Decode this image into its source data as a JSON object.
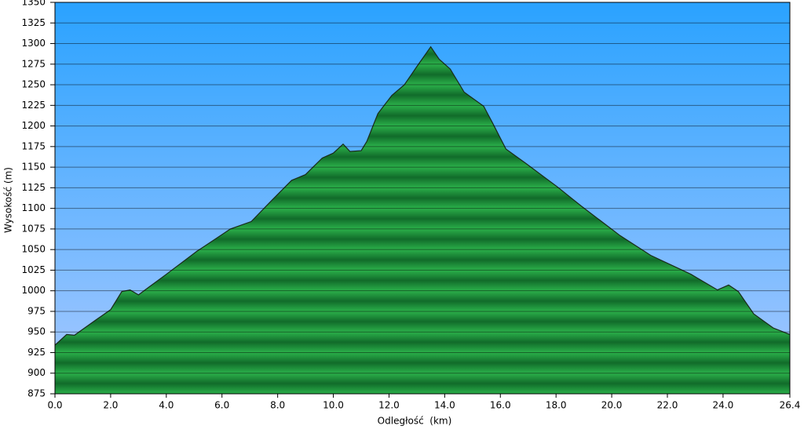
{
  "chart_data": {
    "type": "area",
    "x_label": "Odległość  (km)",
    "y_label": "Wysokość (m)",
    "x": [
      0,
      0.42,
      0.7,
      1.4,
      2.0,
      2.4,
      2.7,
      3.0,
      3.4,
      4.0,
      5.1,
      6.3,
      7.05,
      7.8,
      8.5,
      9.0,
      9.6,
      10.0,
      10.35,
      10.6,
      11.0,
      11.2,
      11.6,
      12.1,
      12.55,
      13.0,
      13.5,
      13.8,
      14.2,
      14.7,
      15.4,
      15.7,
      16.2,
      16.9,
      18.05,
      18.9,
      20.3,
      21.4,
      22.85,
      23.8,
      24.2,
      24.55,
      25.1,
      25.8,
      26.4
    ],
    "values": [
      934,
      947,
      946,
      963,
      977,
      999,
      1001,
      995,
      1005,
      1020,
      1048,
      1075,
      1084,
      1110,
      1134,
      1141,
      1161,
      1167,
      1178,
      1169,
      1170,
      1181,
      1215,
      1237,
      1250,
      1272,
      1296,
      1281,
      1269,
      1241,
      1224,
      1205,
      1172,
      1155,
      1126,
      1103,
      1067,
      1043,
      1020,
      1001,
      1007,
      999,
      972,
      955,
      947
    ],
    "color": "#1f9a3a",
    "xlim": [
      0,
      26.4
    ],
    "xticks": [
      {
        "value": 0,
        "label": "0.0"
      },
      {
        "value": 2,
        "label": "2.0"
      },
      {
        "value": 4,
        "label": "4.0"
      },
      {
        "value": 6,
        "label": "6.0"
      },
      {
        "value": 8,
        "label": "8.0"
      },
      {
        "value": 10,
        "label": "10.0"
      },
      {
        "value": 12,
        "label": "12.0"
      },
      {
        "value": 14,
        "label": "14.0"
      },
      {
        "value": 16,
        "label": "16.0"
      },
      {
        "value": 18,
        "label": "18.0"
      },
      {
        "value": 20,
        "label": "20.0"
      },
      {
        "value": 22,
        "label": "22.0"
      },
      {
        "value": 24,
        "label": "24.0"
      },
      26.4
    ],
    "ylim": [
      875,
      1350
    ],
    "yticks": [
      875,
      900,
      925,
      950,
      975,
      1000,
      1025,
      1050,
      1075,
      1100,
      1125,
      1150,
      1175,
      1200,
      1225,
      1250,
      1275,
      1300,
      1325,
      1350
    ],
    "grid": true
  }
}
